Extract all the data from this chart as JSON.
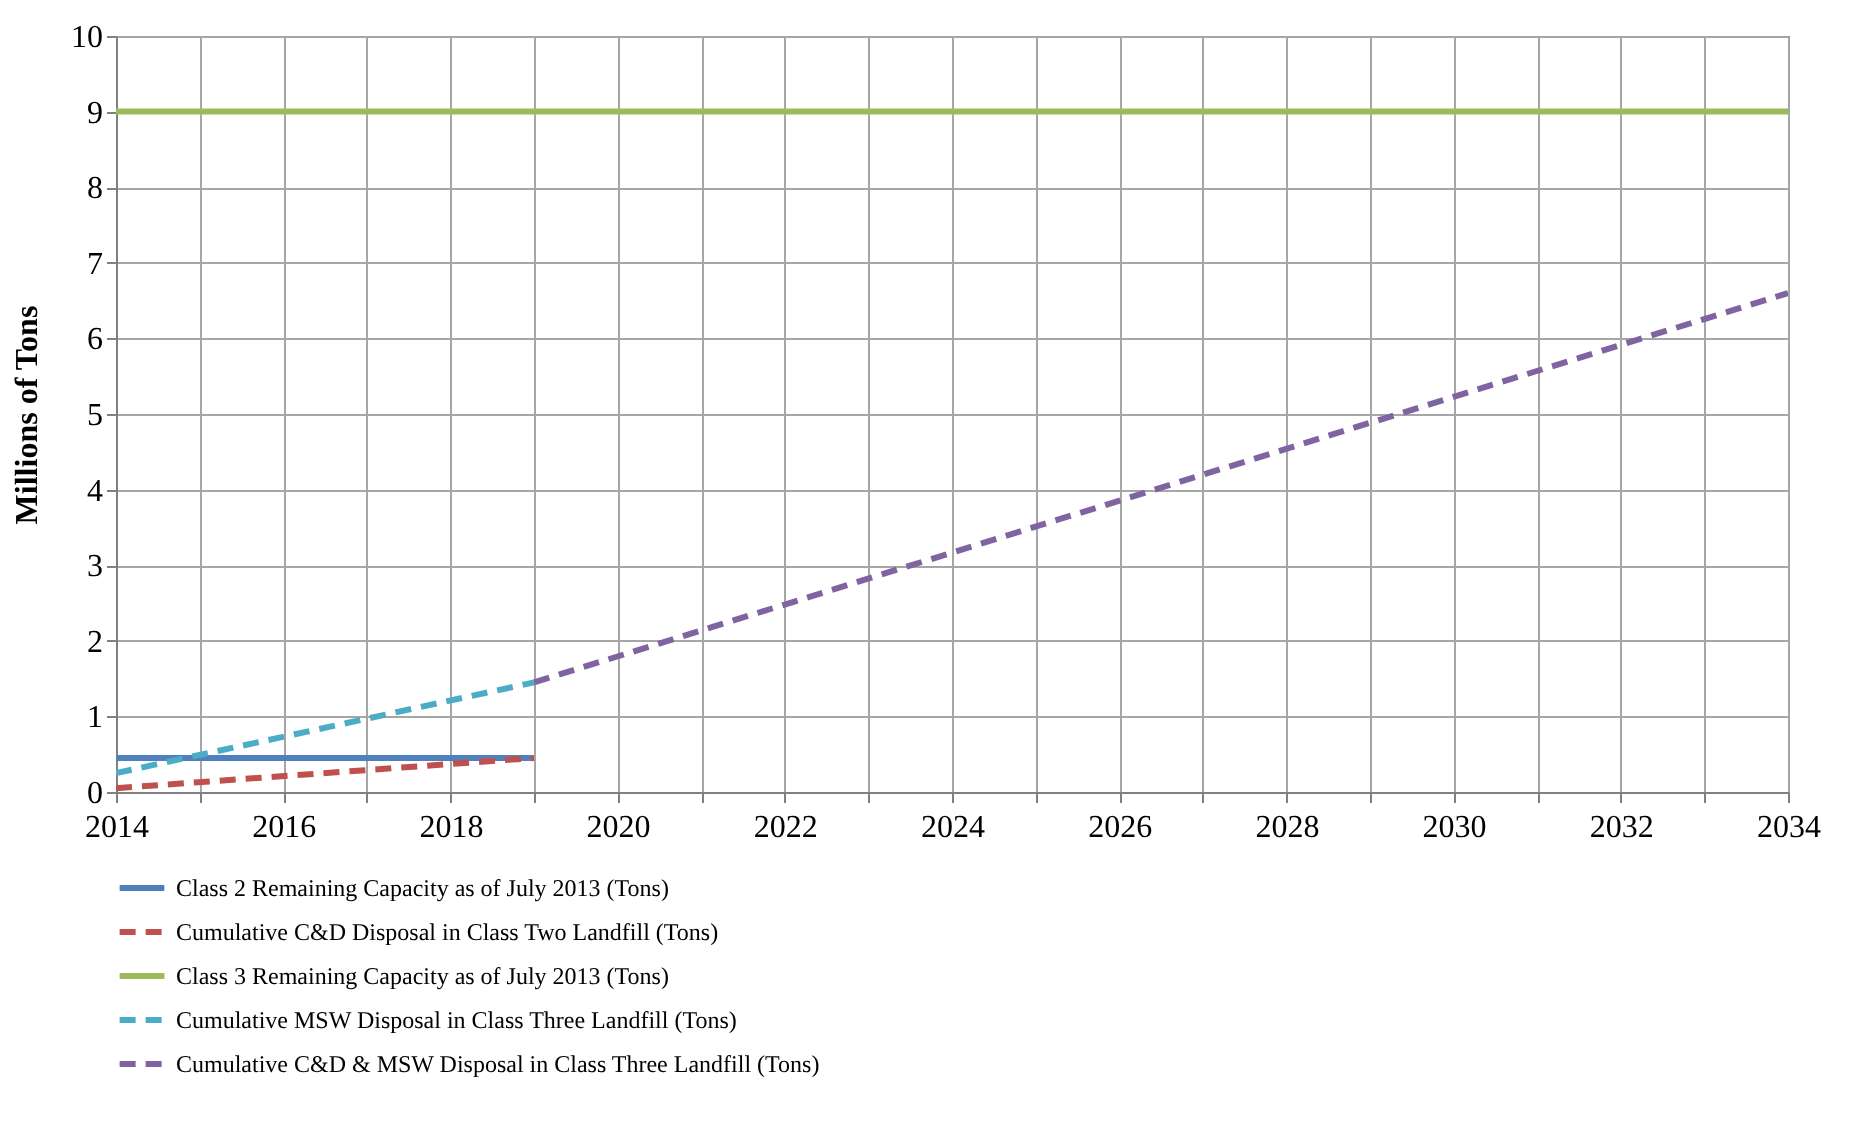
{
  "chart_data": {
    "type": "line",
    "ylabel": "Millions of Tons",
    "xlim": [
      2014,
      2034
    ],
    "ylim": [
      0,
      10
    ],
    "xticks": [
      2014,
      {
        "value": 2015,
        "label": null
      },
      2016,
      {
        "value": 2017,
        "label": null
      },
      2018,
      {
        "value": 2019,
        "label": null
      },
      2020,
      {
        "value": 2021,
        "label": null
      },
      2022,
      {
        "value": 2023,
        "label": null
      },
      2024,
      {
        "value": 2025,
        "label": null
      },
      2026,
      {
        "value": 2027,
        "label": null
      },
      2028,
      {
        "value": 2029,
        "label": null
      },
      2030,
      {
        "value": 2031,
        "label": null
      },
      2032,
      {
        "value": 2033,
        "label": null
      },
      2034
    ],
    "yticks": [
      0,
      1,
      2,
      3,
      4,
      5,
      6,
      7,
      8,
      9,
      10
    ],
    "grid": true,
    "legend": "bottom",
    "marker": "none",
    "series": [
      {
        "name": "Class 2 Remaining Capacity as of July 2013 (Tons)",
        "color": "#4f81bd",
        "line_style": "solid",
        "x": [
          2014,
          2019
        ],
        "values": [
          0.45,
          0.45
        ]
      },
      {
        "name": "Cumulative C&D Disposal in Class Two Landfill (Tons)",
        "color": "#c0504d",
        "line_style": "dashed",
        "x": [
          2014,
          2019
        ],
        "values": [
          0.05,
          0.45
        ]
      },
      {
        "name": "Class 3 Remaining Capacity as of July 2013 (Tons)",
        "color": "#9bbb59",
        "line_style": "solid",
        "x": [
          2014,
          2034
        ],
        "values": [
          9,
          9
        ]
      },
      {
        "name": "Cumulative MSW Disposal in Class Three Landfill (Tons)",
        "color": "#4bacc6",
        "line_style": "dashed",
        "x": [
          2014,
          2019
        ],
        "values": [
          0.25,
          1.45
        ]
      },
      {
        "name": "Cumulative C&D & MSW Disposal in Class Three Landfill (Tons)",
        "color": "#8064a2",
        "line_style": "dashed",
        "x": [
          2019,
          2034
        ],
        "values": [
          1.45,
          6.6
        ]
      }
    ]
  }
}
